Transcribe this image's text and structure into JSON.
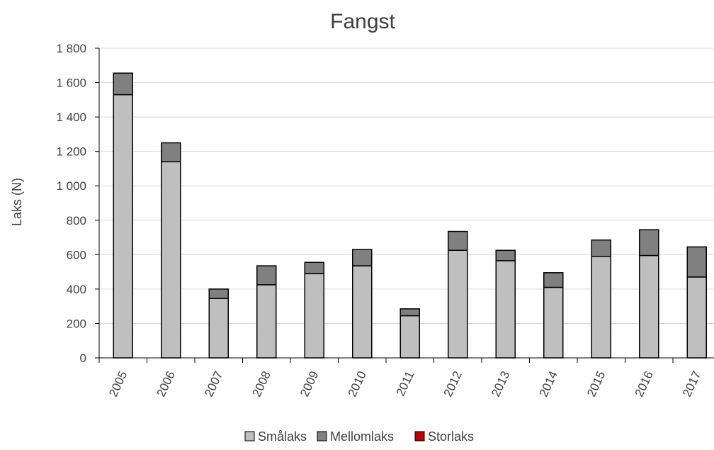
{
  "chart_data": {
    "type": "bar",
    "stacked": true,
    "title": "Fangst",
    "xlabel": "",
    "ylabel": "Laks (N)",
    "categories": [
      "2005",
      "2006",
      "2007",
      "2008",
      "2009",
      "2010",
      "2011",
      "2012",
      "2013",
      "2014",
      "2015",
      "2016",
      "2017"
    ],
    "series": [
      {
        "name": "Smålaks",
        "color": "#bfbfbf",
        "values": [
          1530,
          1140,
          345,
          425,
          490,
          535,
          245,
          625,
          565,
          410,
          590,
          595,
          470
        ]
      },
      {
        "name": "Mellomlaks",
        "color": "#808080",
        "values": [
          125,
          110,
          55,
          110,
          65,
          95,
          40,
          110,
          60,
          85,
          95,
          150,
          175
        ]
      },
      {
        "name": "Storlaks",
        "color": "#c00000",
        "values": [
          0,
          0,
          0,
          0,
          0,
          0,
          0,
          0,
          0,
          0,
          0,
          0,
          0
        ]
      }
    ],
    "ylim": [
      0,
      1800
    ],
    "yticks": [
      0,
      200,
      400,
      600,
      800,
      1000,
      1200,
      1400,
      1600,
      1800
    ],
    "ytick_labels": [
      "0",
      "200",
      "400",
      "600",
      "800",
      "1 000",
      "1 200",
      "1 400",
      "1 600",
      "1 800"
    ],
    "grid": true,
    "legend_position": "bottom"
  }
}
